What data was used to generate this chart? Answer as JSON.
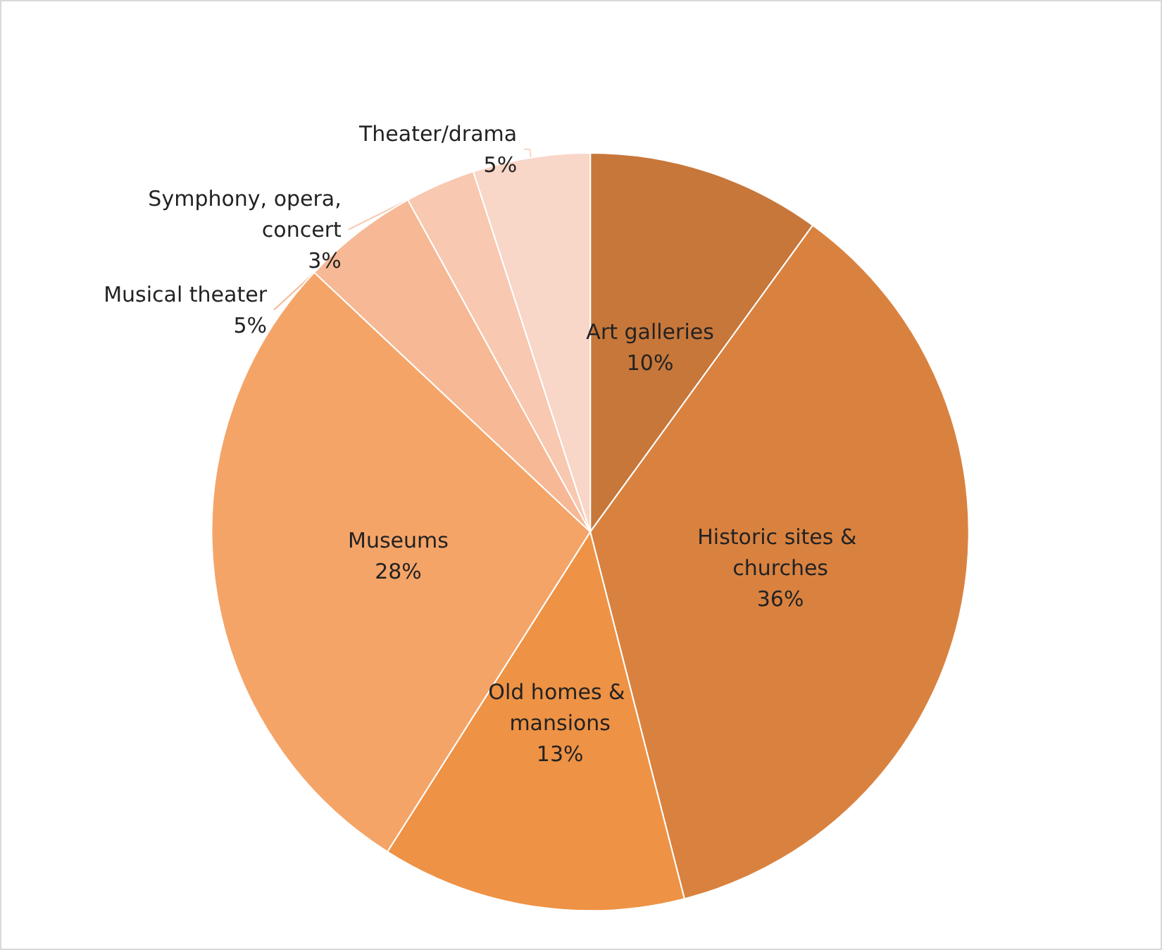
{
  "chart_data": {
    "type": "pie",
    "categories": [
      "Art galleries",
      "Historic sites & churches",
      "Old homes & mansions",
      "Museums",
      "Musical theater",
      "Symphony, opera, concert",
      "Theater/drama"
    ],
    "values": [
      10,
      36,
      13,
      28,
      5,
      3,
      5
    ],
    "colors": [
      "#c7773a",
      "#d98240",
      "#ee9245",
      "#f5a468",
      "#f6b895",
      "#f8c8b0",
      "#f8d6c8"
    ],
    "value_labels": [
      "10%",
      "36%",
      "13%",
      "28%",
      "5%",
      "3%",
      "5%"
    ],
    "legend": false
  }
}
